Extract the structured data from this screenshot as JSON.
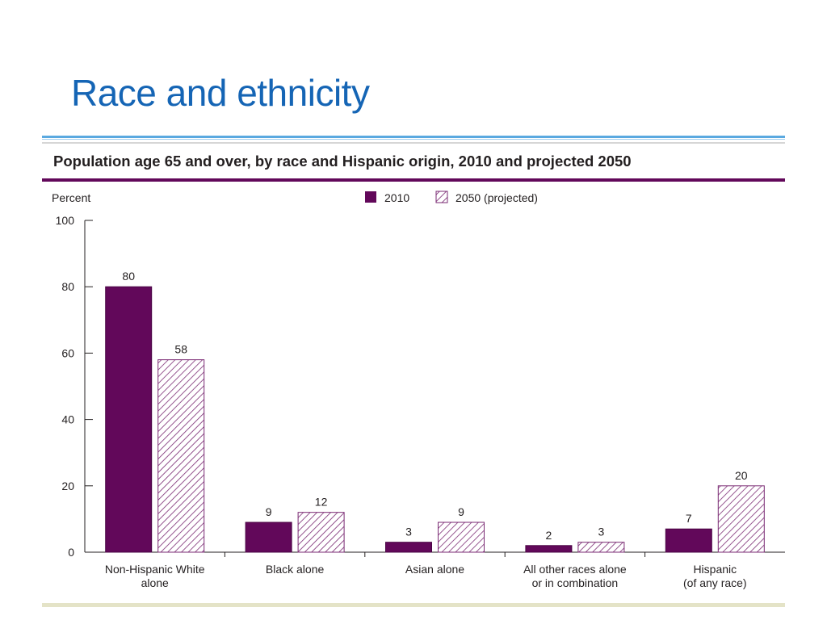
{
  "slide": {
    "title": "Race and ethnicity"
  },
  "colors": {
    "title": "#1565b5",
    "series_2010": "#62085a",
    "series_2050_hatch": "#7a2a73",
    "accent_rule": "#62085a"
  },
  "chart_data": {
    "type": "bar",
    "title": "Population age 65 and over, by race and Hispanic origin, 2010 and projected 2050",
    "ylabel": "Percent",
    "xlabel": "",
    "ylim": [
      0,
      100
    ],
    "yticks": [
      0,
      20,
      40,
      60,
      80,
      100
    ],
    "grid": false,
    "legend_position": "top-center",
    "categories": [
      [
        "Non-Hispanic White",
        "alone"
      ],
      [
        "Black alone"
      ],
      [
        "Asian alone"
      ],
      [
        "All other races alone",
        "or in combination"
      ],
      [
        "Hispanic",
        "(of any race)"
      ]
    ],
    "series": [
      {
        "name": "2010",
        "fill": "solid",
        "values": [
          80,
          9,
          3,
          2,
          7
        ]
      },
      {
        "name": "2050 (projected)",
        "fill": "hatched",
        "values": [
          58,
          12,
          9,
          3,
          20
        ]
      }
    ]
  }
}
